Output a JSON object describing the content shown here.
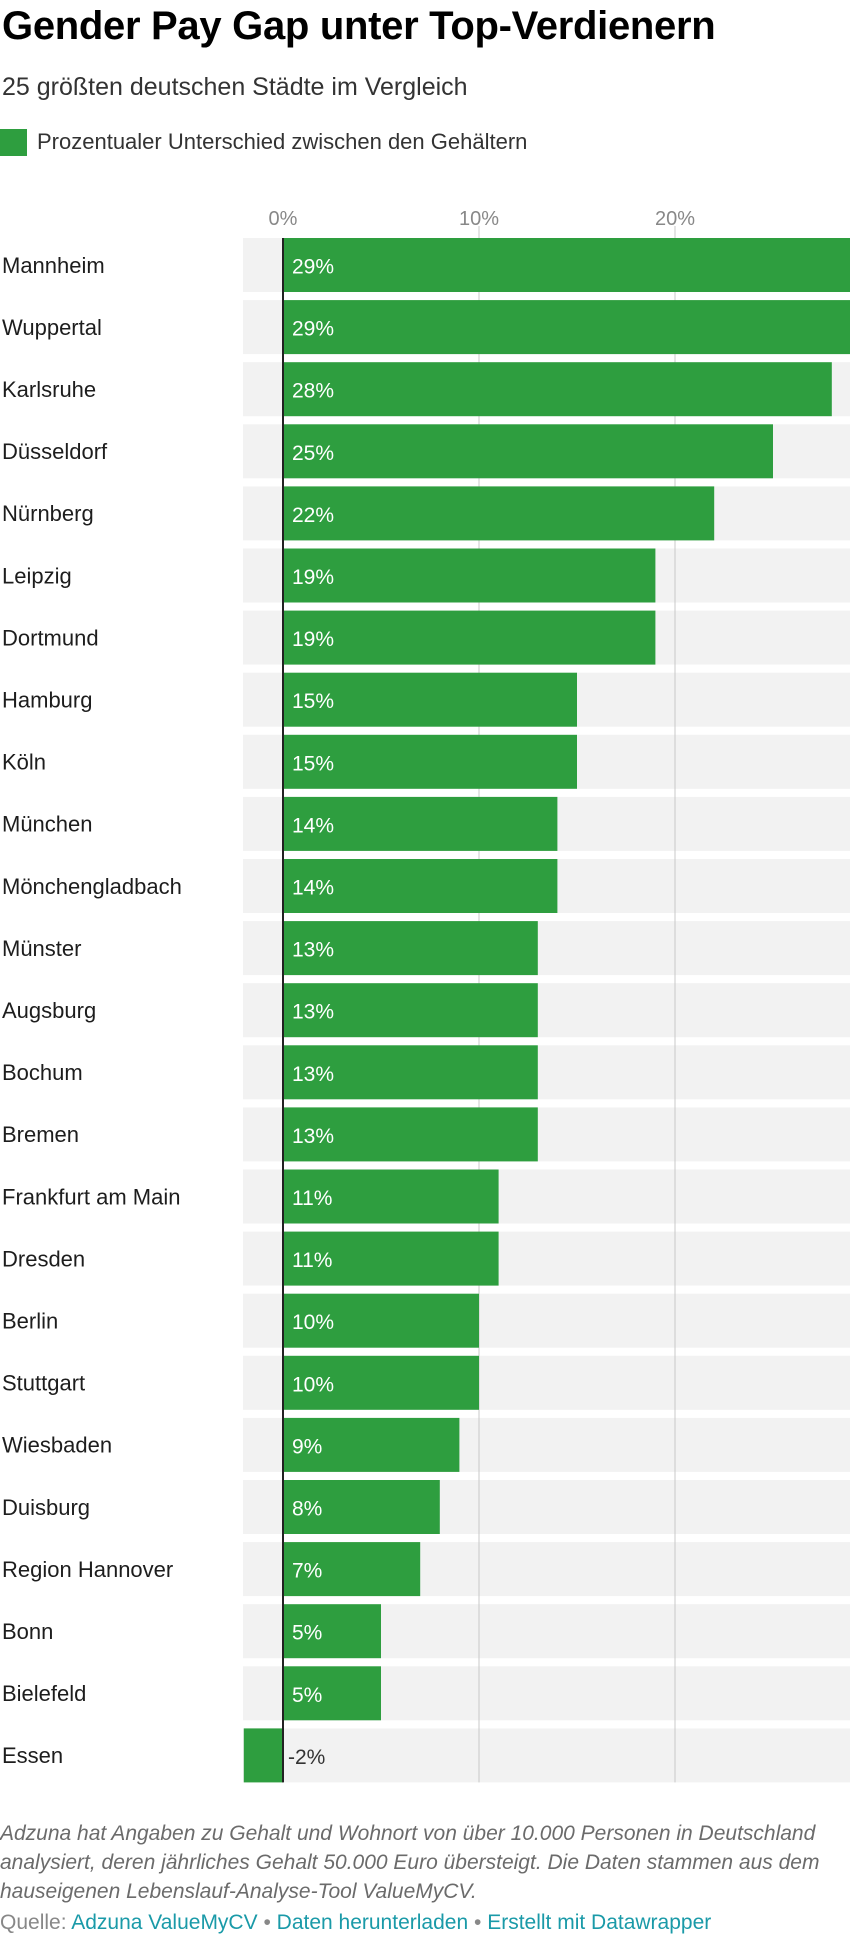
{
  "title": "Gender Pay Gap unter Top-Verdienern",
  "subtitle": "25 größten deutschen Städte im Vergleich",
  "colors": {
    "bar": "#2e9e3f",
    "track": "#f2f2f2",
    "grid": "#c8c8c8",
    "zero_line": "#222222",
    "bar_label": "#ffffff",
    "negative_label": "#333333",
    "link": "#1a9aa8"
  },
  "chart_data": {
    "type": "bar",
    "orientation": "horizontal",
    "legend_position": "top-left",
    "grid": true,
    "xlim": [
      -2,
      29
    ],
    "x_ticks": [
      {
        "value": 0,
        "label": "0%"
      },
      {
        "value": 10,
        "label": "10%"
      },
      {
        "value": 20,
        "label": "20%"
      }
    ],
    "series": [
      {
        "name": "Prozentualer Unterschied zwischen den Gehältern",
        "color": "#2e9e3f"
      }
    ],
    "categories": [
      "Mannheim",
      "Wuppertal",
      "Karlsruhe",
      "Düsseldorf",
      "Nürnberg",
      "Leipzig",
      "Dortmund",
      "Hamburg",
      "Köln",
      "München",
      "Mönchengladbach",
      "Münster",
      "Augsburg",
      "Bochum",
      "Bremen",
      "Frankfurt am Main",
      "Dresden",
      "Berlin",
      "Stuttgart",
      "Wiesbaden",
      "Duisburg",
      "Region Hannover",
      "Bonn",
      "Bielefeld",
      "Essen"
    ],
    "values": [
      29,
      29,
      28,
      25,
      22,
      19,
      19,
      15,
      15,
      14,
      14,
      13,
      13,
      13,
      13,
      11,
      11,
      10,
      10,
      9,
      8,
      7,
      5,
      5,
      -2
    ],
    "value_labels": [
      "29%",
      "29%",
      "28%",
      "25%",
      "22%",
      "19%",
      "19%",
      "15%",
      "15%",
      "14%",
      "14%",
      "13%",
      "13%",
      "13%",
      "13%",
      "11%",
      "11%",
      "10%",
      "10%",
      "9%",
      "8%",
      "7%",
      "5%",
      "5%",
      "-2%"
    ]
  },
  "note": "Adzuna hat Angaben zu Gehalt und Wohnort von über 10.000 Personen in Deutschland analysiert, deren jährliches Gehalt 50.000 Euro übersteigt. Die Daten stammen aus dem hauseigenen Lebenslauf-Analyse-Tool ValueMyCV.",
  "footer": {
    "source_prefix": "Quelle:",
    "source_link": "Adzuna ValueMyCV",
    "separator": "•",
    "download_link": "Daten herunterladen",
    "credit_link": "Erstellt mit Datawrapper"
  }
}
